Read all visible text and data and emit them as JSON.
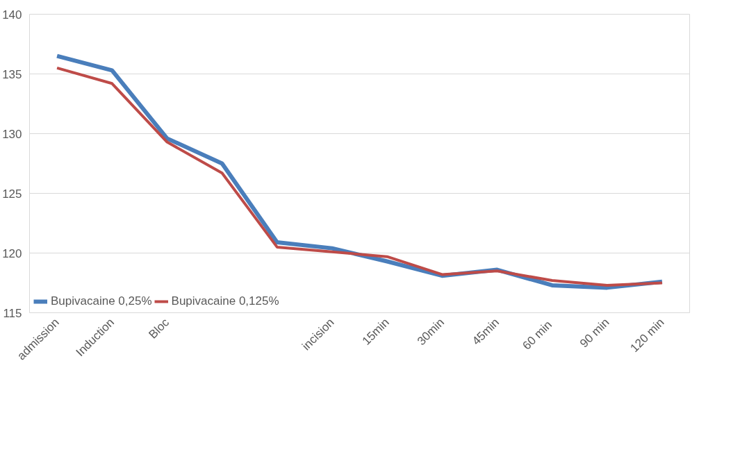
{
  "chart_data": {
    "type": "line",
    "categories": [
      "admission",
      "Induction",
      "Bloc",
      null,
      null,
      "incision",
      "15min",
      "30min",
      "45min",
      "60  min",
      "90 min",
      "120 min"
    ],
    "series": [
      {
        "name": "Bupivacaine 0,25%",
        "color": "#4a7ebb",
        "values": [
          136.5,
          135.3,
          129.6,
          127.5,
          120.9,
          120.4,
          119.3,
          118.1,
          118.6,
          117.3,
          117.1,
          117.6
        ]
      },
      {
        "name": "Bupivacaine 0,125%",
        "color": "#be4b48",
        "values": [
          135.5,
          134.2,
          129.3,
          126.7,
          120.5,
          120.1,
          119.7,
          118.2,
          118.5,
          117.7,
          117.3,
          117.5
        ]
      }
    ],
    "ylim": [
      115,
      140
    ],
    "yticks": [
      115,
      120,
      125,
      130,
      135,
      140
    ],
    "grid": "y",
    "legend": "bottom left",
    "marker": "none",
    "line_style": "solid"
  }
}
